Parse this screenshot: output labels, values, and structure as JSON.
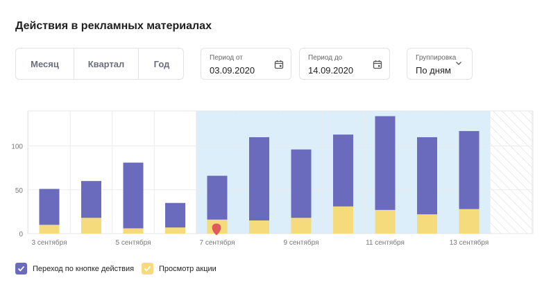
{
  "header": {
    "title": "Действия в рекламных материалах"
  },
  "period_buttons": [
    {
      "label": "Месяц"
    },
    {
      "label": "Квартал"
    },
    {
      "label": "Год"
    }
  ],
  "date_from": {
    "label": "Период от",
    "value": "03.09.2020",
    "icon": "calendar-icon"
  },
  "date_to": {
    "label": "Период до",
    "value": "14.09.2020",
    "icon": "calendar-icon"
  },
  "grouping": {
    "label": "Группировка",
    "value": "По дням",
    "icon": "chevron-down-icon"
  },
  "colors": {
    "action": "#6b6bbd",
    "view": "#f5db7b",
    "selection": "#dbeefa",
    "marker": "#e05a5a"
  },
  "legend": [
    {
      "label": "Переход по кнопке действия",
      "color": "#6b6bbd",
      "checked": true
    },
    {
      "label": "Просмотр акции",
      "color": "#f5db7b",
      "checked": true
    }
  ],
  "chart_data": {
    "type": "bar",
    "stacked": true,
    "categories": [
      "3 сентября",
      "4 сентября",
      "5 сентября",
      "6 сентября",
      "7 сентября",
      "8 сентября",
      "9 сентября",
      "10 сентября",
      "11 сентября",
      "12 сентября",
      "13 сентября",
      "14 сентября"
    ],
    "x_tick_labels": [
      "3 сентября",
      "5 сентября",
      "7 сентября",
      "9 сентября",
      "11 сентября",
      "13 сентября"
    ],
    "series": [
      {
        "name": "Просмотр акции",
        "color": "#f5db7b",
        "values": [
          10,
          18,
          6,
          7,
          16,
          15,
          18,
          31,
          27,
          22,
          28,
          null
        ]
      },
      {
        "name": "Переход по кнопке действия",
        "color": "#6b6bbd",
        "values": [
          41,
          42,
          75,
          28,
          50,
          95,
          78,
          82,
          107,
          88,
          89,
          null
        ]
      }
    ],
    "y_ticks": [
      0,
      50,
      100
    ],
    "ylim": [
      0,
      140
    ],
    "grid": true,
    "highlight_range": [
      "7 сентября",
      "13 сентября"
    ],
    "unavailable_category": "14 сентября",
    "marker": {
      "category": "7 сентября",
      "y": 2
    },
    "legend_position": "bottom-left"
  }
}
